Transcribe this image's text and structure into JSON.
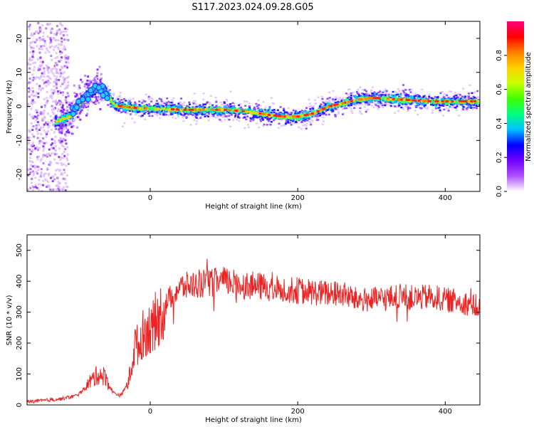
{
  "title": "S117.2023.024.09.28.G05",
  "chart_data": [
    {
      "type": "heatmap",
      "xlabel": "Height of straight line (km)",
      "ylabel": "Frequency (Hz)",
      "xlim": [
        -167,
        447
      ],
      "ylim": [
        -25,
        25
      ],
      "xticks": [
        0,
        200,
        400
      ],
      "yticks": [
        -20,
        -10,
        0,
        10,
        20
      ],
      "colorbar": {
        "label": "Normalized spectral amplitude",
        "range": [
          0,
          1
        ],
        "ticks": [
          "0.0",
          "0.2",
          "0.4",
          "0.6",
          "0.8"
        ],
        "colors": [
          "#ffffff",
          "#b050ff",
          "#7000ff",
          "#0000ff",
          "#00c0ff",
          "#00ff80",
          "#40ff00",
          "#c8ff00",
          "#ffd000",
          "#ff8000",
          "#ff0000",
          "#ff0080"
        ]
      },
      "ridge": {
        "x": [
          -130,
          -110,
          -95,
          -80,
          -70,
          -60,
          -50,
          -40,
          -20,
          0,
          40,
          80,
          100,
          130,
          160,
          180,
          200,
          220,
          240,
          260,
          280,
          300,
          340,
          380,
          420,
          447
        ],
        "y": [
          -4.5,
          -3.0,
          1.5,
          4.5,
          5.5,
          3.5,
          0.5,
          0.0,
          -0.5,
          -0.5,
          -1.0,
          -1.0,
          -1.0,
          -1.5,
          -2.5,
          -3.0,
          -3.0,
          -2.0,
          0.0,
          1.0,
          2.0,
          2.5,
          2.0,
          1.5,
          1.5,
          1.5
        ]
      }
    },
    {
      "type": "line",
      "xlabel": "Height of straight line (km)",
      "ylabel": "SNR (10 * v/v)",
      "xlim": [
        -167,
        447
      ],
      "ylim": [
        0,
        550
      ],
      "xticks": [
        0,
        200,
        400
      ],
      "yticks": [
        0,
        100,
        200,
        300,
        400,
        500
      ],
      "color": "#ee2222",
      "series": [
        {
          "x": [
            -167,
            -140,
            -120,
            -100,
            -90,
            -80,
            -70,
            -60,
            -55,
            -50,
            -40,
            -30,
            -25,
            -20,
            -15,
            -10,
            0,
            10,
            20,
            30,
            40,
            60,
            80,
            100,
            120,
            140,
            160,
            180,
            200,
            220,
            240,
            260,
            280,
            300,
            320,
            340,
            360,
            380,
            400,
            420,
            440,
            447
          ],
          "y": [
            10,
            15,
            20,
            30,
            50,
            80,
            100,
            90,
            60,
            40,
            30,
            70,
            130,
            200,
            190,
            230,
            250,
            280,
            320,
            360,
            380,
            390,
            395,
            400,
            390,
            385,
            380,
            375,
            370,
            365,
            360,
            360,
            340,
            340,
            345,
            350,
            345,
            350,
            340,
            335,
            320,
            310
          ]
        }
      ]
    }
  ]
}
